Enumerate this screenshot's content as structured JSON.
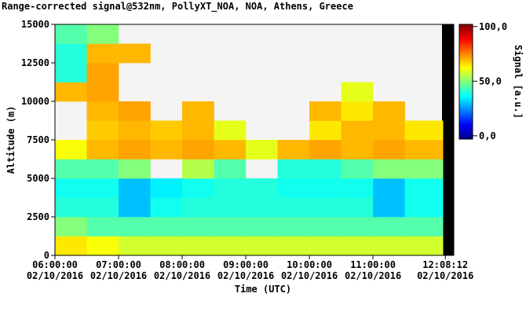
{
  "chart_data": {
    "type": "heatmap",
    "title": "Range-corrected signal@532nm, PollyXT_NOA, NOA, Athens, Greece",
    "xlabel": "Time (UTC)",
    "ylabel": "Altitude (m)",
    "colorbar_label": "Signal [a.u.]",
    "xlim": [
      6,
      12.27
    ],
    "ylim": [
      0,
      15000
    ],
    "clim": [
      -3,
      102
    ],
    "xticks": [
      {
        "value": 6,
        "label": "06:00:00 02/10/2016"
      },
      {
        "value": 7,
        "label": "07:00:00 02/10/2016"
      },
      {
        "value": 8,
        "label": "08:00:00 02/10/2016"
      },
      {
        "value": 9,
        "label": "09:00:00 02/10/2016"
      },
      {
        "value": 10,
        "label": "10:00:00 02/10/2016"
      },
      {
        "value": 11,
        "label": "11:00:00 02/10/2016"
      },
      {
        "value": 12.1367,
        "label": "12:08:12 02/10/2016"
      }
    ],
    "yticks": [
      0,
      2500,
      5000,
      7500,
      10000,
      12500,
      15000
    ],
    "cticks": [
      {
        "value": 100,
        "label": "100,0"
      },
      {
        "value": 50,
        "label": "50,0"
      },
      {
        "value": 0,
        "label": "0,0"
      }
    ],
    "xbins": [
      6,
      6.5,
      7,
      7.5,
      8,
      8.5,
      9,
      9.5,
      10,
      10.5,
      11,
      11.5,
      12.1
    ],
    "ybins": [
      0,
      1250,
      2500,
      3750,
      5000,
      6250,
      7500,
      8750,
      10000,
      11250,
      12500,
      13750,
      15000
    ],
    "values": [
      [
        65,
        62,
        58,
        58,
        58,
        58,
        58,
        58,
        58,
        58,
        58,
        58
      ],
      [
        50,
        45,
        45,
        45,
        45,
        45,
        45,
        45,
        45,
        45,
        45,
        45
      ],
      [
        40,
        40,
        30,
        38,
        40,
        40,
        40,
        40,
        40,
        40,
        30,
        38
      ],
      [
        38,
        38,
        30,
        35,
        38,
        40,
        40,
        38,
        38,
        38,
        30,
        38
      ],
      [
        45,
        45,
        50,
        null,
        55,
        45,
        null,
        40,
        40,
        45,
        50,
        50
      ],
      [
        62,
        70,
        72,
        70,
        72,
        70,
        60,
        70,
        72,
        70,
        72,
        70
      ],
      [
        null,
        68,
        70,
        68,
        70,
        60,
        null,
        null,
        65,
        70,
        70,
        65
      ],
      [
        null,
        70,
        72,
        null,
        70,
        null,
        null,
        null,
        70,
        65,
        70,
        null
      ],
      [
        70,
        72,
        null,
        null,
        null,
        null,
        null,
        null,
        null,
        60,
        null,
        null
      ],
      [
        40,
        72,
        null,
        null,
        null,
        null,
        null,
        null,
        null,
        null,
        null,
        null
      ],
      [
        40,
        70,
        70,
        null,
        null,
        null,
        null,
        null,
        null,
        null,
        null,
        null
      ],
      [
        45,
        50,
        null,
        null,
        null,
        null,
        null,
        null,
        null,
        null,
        null,
        null
      ]
    ]
  }
}
